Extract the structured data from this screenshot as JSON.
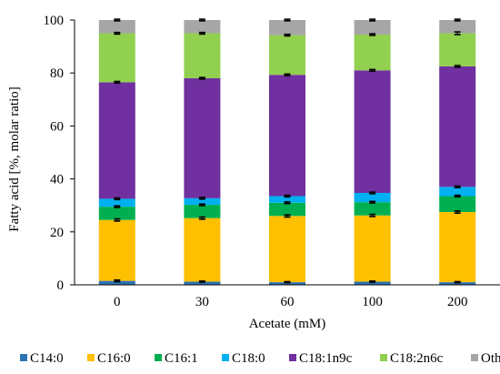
{
  "chart_data": {
    "type": "bar",
    "stacked": true,
    "ylabel": "Fatty acid [%, molar ratio]",
    "xlabel": "Acetate (mM)",
    "ylim": [
      0,
      100
    ],
    "yticks": [
      0,
      20,
      40,
      60,
      80,
      100
    ],
    "grid": false,
    "legend_position": "bottom",
    "categories": [
      "0",
      "30",
      "60",
      "100",
      "200"
    ],
    "series": [
      {
        "name": "C14:0",
        "color": "#2e75b6",
        "values": [
          1.5,
          1.2,
          1.0,
          1.2,
          1.0
        ],
        "errors": [
          0.3,
          0.2,
          0.2,
          0.2,
          0.2
        ]
      },
      {
        "name": "C16:0",
        "color": "#ffc000",
        "values": [
          23.0,
          24.0,
          25.0,
          25.0,
          26.5
        ],
        "errors": [
          0.4,
          0.4,
          0.4,
          0.4,
          0.4
        ]
      },
      {
        "name": "C16:1",
        "color": "#00b050",
        "values": [
          5.0,
          5.0,
          5.0,
          5.0,
          6.0
        ],
        "errors": [
          0.3,
          0.3,
          0.3,
          0.3,
          0.3
        ]
      },
      {
        "name": "C18:0",
        "color": "#00b0f0",
        "values": [
          3.0,
          2.5,
          2.5,
          3.5,
          3.5
        ],
        "errors": [
          0.3,
          0.3,
          0.3,
          0.3,
          0.3
        ]
      },
      {
        "name": "C18:1n9c",
        "color": "#7030a0",
        "values": [
          44.0,
          45.3,
          45.8,
          46.3,
          45.5
        ],
        "errors": [
          0.3,
          0.3,
          0.3,
          0.3,
          0.3
        ]
      },
      {
        "name": "C18:2n6c",
        "color": "#92d050",
        "values": [
          18.5,
          17.0,
          15.0,
          13.5,
          12.5
        ],
        "errors": [
          0.3,
          0.3,
          0.3,
          0.3,
          0.5
        ]
      },
      {
        "name": "Others",
        "color": "#a6a6a6",
        "values": [
          5.0,
          5.0,
          5.7,
          5.5,
          5.0
        ],
        "errors": [
          0.3,
          0.3,
          0.3,
          0.3,
          0.3
        ]
      }
    ]
  }
}
